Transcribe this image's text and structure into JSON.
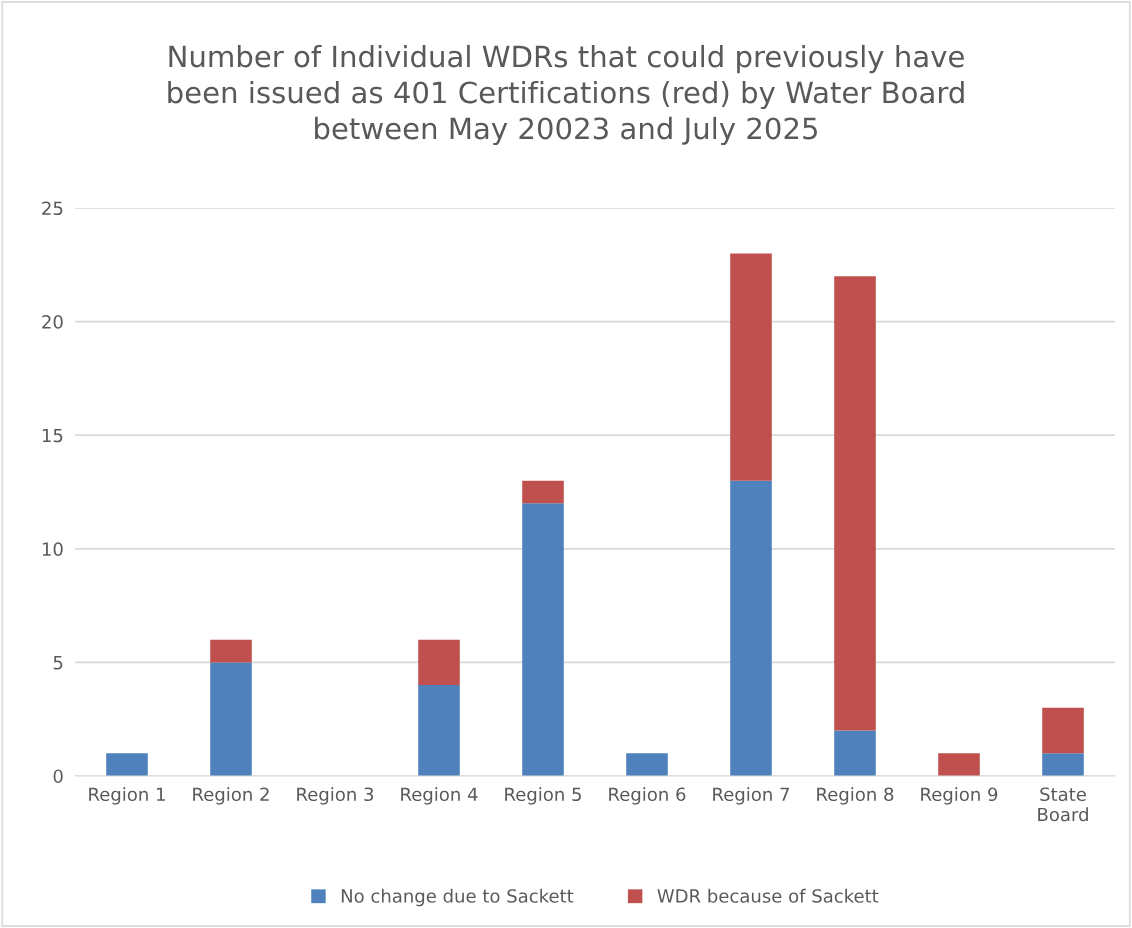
{
  "chart_data": {
    "type": "bar",
    "title": "Number of Individual WDRs that could previously have\nbeen issued as 401 Certifications (red) by Water Board\nbetween May 20023 and July 2025",
    "categories": [
      "Region 1",
      "Region 2",
      "Region 3",
      "Region 4",
      "Region 5",
      "Region 6",
      "Region 7",
      "Region 8",
      "Region 9",
      "State\nBoard"
    ],
    "series": [
      {
        "name": "No change due to Sackett",
        "color": "#4f81bd",
        "values": [
          1,
          5,
          0,
          4,
          12,
          1,
          13,
          2,
          0,
          1
        ]
      },
      {
        "name": "WDR because of Sackett",
        "color": "#c0504d",
        "values": [
          0,
          1,
          0,
          2,
          1,
          0,
          10,
          20,
          1,
          2
        ]
      }
    ],
    "stacked": true,
    "ylim": [
      0,
      25
    ],
    "yticks": [
      0,
      5,
      10,
      15,
      20,
      25
    ],
    "grid": "y",
    "legend": "bottom"
  }
}
